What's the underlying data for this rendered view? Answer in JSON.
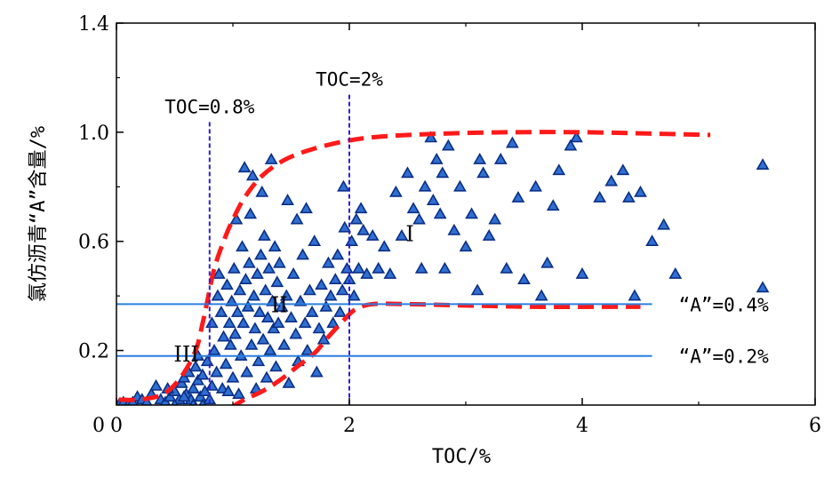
{
  "chart_data": {
    "type": "scatter",
    "xlabel": "TOC/%",
    "ylabel": "氯仿沥青“A”含量/%",
    "xlim": [
      0,
      6
    ],
    "ylim": [
      0,
      1.4
    ],
    "x_ticks": [
      0,
      2,
      4,
      6
    ],
    "y_ticks": [
      0.2,
      0.6,
      1.0,
      1.4
    ],
    "x_tick_labels": [
      "0",
      "2",
      "4",
      "6"
    ],
    "y_tick_labels": [
      "0.2",
      "0.6",
      "1.0",
      "1.4"
    ],
    "grid": false,
    "colors": {
      "marker_fill": "#2f6fd1",
      "marker_edge": "#0b2f86",
      "boundary": "#ff1a1a",
      "toc_line": "#2f1fd6",
      "a_line": "#2a7fe0"
    },
    "vertical_lines": [
      {
        "x": 0.8,
        "label": "TOC=0.8%",
        "label_y": 1.07
      },
      {
        "x": 2.0,
        "label": "TOC=2%",
        "label_y": 1.17
      }
    ],
    "horizontal_lines": [
      {
        "y": 0.37,
        "x_end": 4.6,
        "label": "“A”=0.4%"
      },
      {
        "y": 0.18,
        "x_end": 4.6,
        "label": "“A”=0.2%"
      }
    ],
    "regions": [
      {
        "label": "I",
        "x": 2.52,
        "y": 0.6
      },
      {
        "label": "II",
        "x": 1.4,
        "y": 0.34
      },
      {
        "label": "III",
        "x": 0.6,
        "y": 0.16
      }
    ],
    "boundary_curves": [
      {
        "points": [
          [
            0.02,
            0.02
          ],
          [
            0.2,
            0.02
          ],
          [
            0.4,
            0.04
          ],
          [
            0.55,
            0.1
          ],
          [
            0.68,
            0.2
          ],
          [
            0.74,
            0.3
          ],
          [
            0.78,
            0.38
          ],
          [
            0.84,
            0.5
          ],
          [
            0.92,
            0.6
          ],
          [
            1.0,
            0.68
          ],
          [
            1.1,
            0.76
          ],
          [
            1.25,
            0.84
          ],
          [
            1.45,
            0.9
          ],
          [
            1.7,
            0.94
          ],
          [
            2.0,
            0.97
          ],
          [
            2.3,
            0.985
          ],
          [
            2.8,
            0.995
          ],
          [
            3.4,
            1.0
          ],
          [
            4.0,
            1.0
          ],
          [
            4.6,
            0.995
          ],
          [
            5.1,
            0.99
          ]
        ]
      },
      {
        "points": [
          [
            0.98,
            -0.01
          ],
          [
            1.1,
            0.02
          ],
          [
            1.25,
            0.05
          ],
          [
            1.4,
            0.09
          ],
          [
            1.55,
            0.14
          ],
          [
            1.7,
            0.19
          ],
          [
            1.82,
            0.25
          ],
          [
            1.95,
            0.31
          ],
          [
            2.05,
            0.35
          ],
          [
            2.2,
            0.37
          ],
          [
            2.5,
            0.37
          ],
          [
            3.0,
            0.365
          ],
          [
            3.6,
            0.36
          ],
          [
            4.1,
            0.36
          ],
          [
            4.5,
            0.36
          ]
        ]
      }
    ],
    "series": [
      {
        "points": [
          [
            0.02,
            0.0
          ],
          [
            0.06,
            0.01
          ],
          [
            0.1,
            0.0
          ],
          [
            0.14,
            0.01
          ],
          [
            0.18,
            0.03
          ],
          [
            0.22,
            0.02
          ],
          [
            0.26,
            0.01
          ],
          [
            0.3,
            0.04
          ],
          [
            0.34,
            0.07
          ],
          [
            0.38,
            0.02
          ],
          [
            0.42,
            0.01
          ],
          [
            0.46,
            0.03
          ],
          [
            0.5,
            0.05
          ],
          [
            0.54,
            0.02
          ],
          [
            0.56,
            0.08
          ],
          [
            0.58,
            0.1
          ],
          [
            0.6,
            0.04
          ],
          [
            0.62,
            0.12
          ],
          [
            0.64,
            0.02
          ],
          [
            0.66,
            0.06
          ],
          [
            0.68,
            0.14
          ],
          [
            0.7,
            0.09
          ],
          [
            0.72,
            0.03
          ],
          [
            0.74,
            0.11
          ],
          [
            0.76,
            0.05
          ],
          [
            0.78,
            0.16
          ],
          [
            0.8,
            0.02
          ],
          [
            0.82,
            0.07
          ],
          [
            0.58,
            0.03
          ],
          [
            0.66,
            0.0
          ],
          [
            0.74,
            0.0
          ],
          [
            0.5,
            0.0
          ],
          [
            0.44,
            0.06
          ],
          [
            0.7,
            0.18
          ],
          [
            0.82,
            0.3
          ],
          [
            0.84,
            0.2
          ],
          [
            0.86,
            0.12
          ],
          [
            0.87,
            0.4
          ],
          [
            0.88,
            0.48
          ],
          [
            0.9,
            0.34
          ],
          [
            0.91,
            0.06
          ],
          [
            0.92,
            0.25
          ],
          [
            0.94,
            0.15
          ],
          [
            0.95,
            0.44
          ],
          [
            0.96,
            0.05
          ],
          [
            0.97,
            0.3
          ],
          [
            0.98,
            0.22
          ],
          [
            0.99,
            0.38
          ],
          [
            1.0,
            0.1
          ],
          [
            1.01,
            0.5
          ],
          [
            1.02,
            0.26
          ],
          [
            1.03,
            0.68
          ],
          [
            1.04,
            0.34
          ],
          [
            1.05,
            0.04
          ],
          [
            1.06,
            0.42
          ],
          [
            1.07,
            0.18
          ],
          [
            1.08,
            0.58
          ],
          [
            1.09,
            0.3
          ],
          [
            1.1,
            0.87
          ],
          [
            1.11,
            0.46
          ],
          [
            1.12,
            0.12
          ],
          [
            1.13,
            0.36
          ],
          [
            1.14,
            0.52
          ],
          [
            1.15,
            0.7
          ],
          [
            1.16,
            0.22
          ],
          [
            1.17,
            0.84
          ],
          [
            1.18,
            0.4
          ],
          [
            1.19,
            0.28
          ],
          [
            1.2,
            0.06
          ],
          [
            1.21,
            0.48
          ],
          [
            1.22,
            0.16
          ],
          [
            1.23,
            0.34
          ],
          [
            1.24,
            0.55
          ],
          [
            1.25,
            0.78
          ],
          [
            1.26,
            0.24
          ],
          [
            1.27,
            0.62
          ],
          [
            1.28,
            0.42
          ],
          [
            1.29,
            0.1
          ],
          [
            1.3,
            0.32
          ],
          [
            1.31,
            0.5
          ],
          [
            1.32,
            0.2
          ],
          [
            1.33,
            0.9
          ],
          [
            1.34,
            0.38
          ],
          [
            1.35,
            0.28
          ],
          [
            1.36,
            0.58
          ],
          [
            1.37,
            0.14
          ],
          [
            1.38,
            0.45
          ],
          [
            1.39,
            0.3
          ],
          [
            1.4,
            0.52
          ],
          [
            1.42,
            0.36
          ],
          [
            1.44,
            0.22
          ],
          [
            1.46,
            0.4
          ],
          [
            1.47,
            0.75
          ],
          [
            1.48,
            0.08
          ],
          [
            1.5,
            0.32
          ],
          [
            1.52,
            0.48
          ],
          [
            1.54,
            0.26
          ],
          [
            1.55,
            0.68
          ],
          [
            1.56,
            0.16
          ],
          [
            1.58,
            0.38
          ],
          [
            1.6,
            0.55
          ],
          [
            1.62,
            0.3
          ],
          [
            1.63,
            0.72
          ],
          [
            1.64,
            0.2
          ],
          [
            1.66,
            0.42
          ],
          [
            1.68,
            0.34
          ],
          [
            1.7,
            0.6
          ],
          [
            1.72,
            0.12
          ],
          [
            1.74,
            0.28
          ],
          [
            1.76,
            0.44
          ],
          [
            1.78,
            0.24
          ],
          [
            1.8,
            0.36
          ],
          [
            1.82,
            0.52
          ],
          [
            1.84,
            0.4
          ],
          [
            1.86,
            0.3
          ],
          [
            1.88,
            0.46
          ],
          [
            1.9,
            0.55
          ],
          [
            1.92,
            0.34
          ],
          [
            1.94,
            0.42
          ],
          [
            1.95,
            0.8
          ],
          [
            1.96,
            0.65
          ],
          [
            1.98,
            0.5
          ],
          [
            2.0,
            0.46
          ],
          [
            2.02,
            0.6
          ],
          [
            2.04,
            0.4
          ],
          [
            2.06,
            0.68
          ],
          [
            2.08,
            0.5
          ],
          [
            2.1,
            0.72
          ],
          [
            2.12,
            0.64
          ],
          [
            2.15,
            0.48
          ],
          [
            2.2,
            0.62
          ],
          [
            2.25,
            0.5
          ],
          [
            2.3,
            0.58
          ],
          [
            2.35,
            0.48
          ],
          [
            2.4,
            0.78
          ],
          [
            2.45,
            0.62
          ],
          [
            2.5,
            0.85
          ],
          [
            2.55,
            0.72
          ],
          [
            2.6,
            0.68
          ],
          [
            2.62,
            0.5
          ],
          [
            2.65,
            0.8
          ],
          [
            2.7,
            0.98
          ],
          [
            2.72,
            0.75
          ],
          [
            2.75,
            0.9
          ],
          [
            2.78,
            0.7
          ],
          [
            2.8,
            0.85
          ],
          [
            2.82,
            0.5
          ],
          [
            2.85,
            0.95
          ],
          [
            2.9,
            0.64
          ],
          [
            2.95,
            0.8
          ],
          [
            3.0,
            0.58
          ],
          [
            3.05,
            0.7
          ],
          [
            3.1,
            0.42
          ],
          [
            3.12,
            0.9
          ],
          [
            3.15,
            0.85
          ],
          [
            3.2,
            0.62
          ],
          [
            3.25,
            0.68
          ],
          [
            3.3,
            0.9
          ],
          [
            3.35,
            0.5
          ],
          [
            3.4,
            0.96
          ],
          [
            3.45,
            0.76
          ],
          [
            3.5,
            0.46
          ],
          [
            3.6,
            0.8
          ],
          [
            3.65,
            0.4
          ],
          [
            3.7,
            0.52
          ],
          [
            3.75,
            0.73
          ],
          [
            3.8,
            0.86
          ],
          [
            3.9,
            0.95
          ],
          [
            3.95,
            0.98
          ],
          [
            4.0,
            0.48
          ],
          [
            4.15,
            0.76
          ],
          [
            4.25,
            0.82
          ],
          [
            4.35,
            0.86
          ],
          [
            4.4,
            0.76
          ],
          [
            4.45,
            0.4
          ],
          [
            4.5,
            0.78
          ],
          [
            4.6,
            0.6
          ],
          [
            4.7,
            0.66
          ],
          [
            4.8,
            0.48
          ],
          [
            5.55,
            0.88
          ],
          [
            5.55,
            0.43
          ]
        ]
      }
    ]
  }
}
